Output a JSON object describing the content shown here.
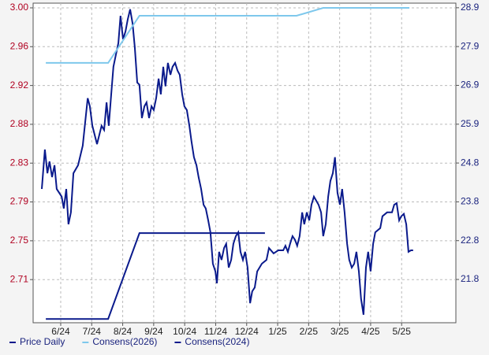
{
  "chart_data": {
    "type": "line",
    "xlim": [
      -0.89,
      12.75
    ],
    "xticks": [
      {
        "value": 0,
        "label": "6/24"
      },
      {
        "value": 1,
        "label": "7/24"
      },
      {
        "value": 2,
        "label": "8/24"
      },
      {
        "value": 3,
        "label": "9/24"
      },
      {
        "value": 4,
        "label": "10/24"
      },
      {
        "value": 5,
        "label": "11/24"
      },
      {
        "value": 6,
        "label": "12/24"
      },
      {
        "value": 7,
        "label": "1/25"
      },
      {
        "value": 8,
        "label": "2/25"
      },
      {
        "value": 9,
        "label": "3/25"
      },
      {
        "value": 10,
        "label": "4/25"
      },
      {
        "value": 11,
        "label": "5/25"
      }
    ],
    "ylim": [
      2.665,
      3.005
    ],
    "yticks": [
      {
        "value": 3.0,
        "label": "3.00"
      },
      {
        "value": 2.9587,
        "label": "2.96"
      },
      {
        "value": 2.9174,
        "label": "2.92"
      },
      {
        "value": 2.8761,
        "label": "2.88"
      },
      {
        "value": 2.8348,
        "label": "2.83"
      },
      {
        "value": 2.7935,
        "label": "2.79"
      },
      {
        "value": 2.7522,
        "label": "2.75"
      },
      {
        "value": 2.7109,
        "label": "2.71"
      }
    ],
    "y2lim": [
      20.68,
      29.02
    ],
    "y2ticks": [
      28.9,
      {
        "value": 27.887,
        "label": "27.9"
      },
      {
        "value": 26.874,
        "label": "26.9"
      },
      {
        "value": 25.861,
        "label": "25.9"
      },
      {
        "value": 24.848,
        "label": "24.8"
      },
      {
        "value": 23.835,
        "label": "23.8"
      },
      {
        "value": 22.822,
        "label": "22.8"
      },
      {
        "value": 21.809,
        "label": "21.8"
      }
    ],
    "grid": true,
    "series": [
      {
        "name": "Price Daily",
        "color": "#0a1a8c",
        "axis": "y2",
        "x": [
          -0.61,
          -0.51,
          -0.43,
          -0.36,
          -0.28,
          -0.2,
          -0.13,
          0.03,
          0.1,
          0.18,
          0.25,
          0.33,
          0.41,
          0.56,
          0.71,
          0.87,
          0.94,
          1.02,
          1.17,
          1.32,
          1.4,
          1.48,
          1.55,
          1.63,
          1.7,
          1.78,
          1.86,
          1.93,
          2.01,
          2.09,
          2.16,
          2.24,
          2.32,
          2.39,
          2.47,
          2.54,
          2.62,
          2.7,
          2.77,
          2.85,
          2.93,
          3.0,
          3.08,
          3.16,
          3.23,
          3.31,
          3.38,
          3.46,
          3.54,
          3.61,
          3.69,
          3.77,
          3.84,
          3.92,
          3.99,
          4.07,
          4.15,
          4.22,
          4.3,
          4.38,
          4.45,
          4.53,
          4.61,
          4.68,
          4.76,
          4.83,
          4.91,
          4.99,
          5.04,
          5.11,
          5.19,
          5.27,
          5.34,
          5.42,
          5.5,
          5.57,
          5.65,
          5.73,
          5.8,
          5.88,
          5.95,
          6.03,
          6.11,
          6.18,
          6.26,
          6.34,
          6.49,
          6.64,
          6.72,
          6.87,
          7.02,
          7.18,
          7.25,
          7.33,
          7.4,
          7.48,
          7.56,
          7.63,
          7.71,
          7.79,
          7.86,
          7.94,
          8.02,
          8.09,
          8.17,
          8.32,
          8.4,
          8.47,
          8.55,
          8.63,
          8.7,
          8.78,
          8.85,
          8.93,
          9.01,
          9.08,
          9.16,
          9.24,
          9.31,
          9.39,
          9.47,
          9.54,
          9.62,
          9.69,
          9.77,
          9.85,
          9.92,
          10.0,
          10.08,
          10.15,
          10.31,
          10.38,
          10.53,
          10.69,
          10.76,
          10.84,
          10.92,
          10.99,
          11.07,
          11.15,
          11.22,
          11.3,
          11.37
        ],
        "values": [
          24.17,
          25.2,
          24.58,
          24.89,
          24.48,
          24.79,
          24.17,
          23.97,
          23.66,
          24.17,
          23.25,
          23.56,
          24.58,
          24.79,
          25.3,
          26.54,
          26.33,
          25.82,
          25.34,
          25.82,
          25.71,
          26.43,
          25.82,
          26.64,
          27.36,
          27.67,
          27.98,
          28.69,
          28.08,
          28.28,
          28.59,
          28.86,
          28.49,
          27.87,
          26.95,
          26.89,
          26.02,
          26.33,
          26.43,
          26.02,
          26.33,
          26.23,
          26.54,
          27.05,
          26.64,
          27.36,
          26.85,
          27.46,
          27.15,
          27.36,
          27.46,
          27.26,
          27.15,
          26.64,
          26.33,
          26.23,
          25.82,
          25.41,
          25.0,
          24.79,
          24.48,
          24.17,
          23.76,
          23.66,
          23.35,
          23.04,
          22.22,
          22.02,
          21.71,
          22.53,
          22.32,
          22.63,
          22.74,
          22.12,
          22.32,
          22.74,
          22.94,
          23.04,
          22.53,
          22.32,
          22.53,
          22.12,
          21.19,
          21.5,
          21.6,
          22.02,
          22.22,
          22.32,
          22.63,
          22.49,
          22.57,
          22.57,
          22.69,
          22.53,
          22.74,
          22.94,
          22.84,
          22.69,
          22.94,
          23.56,
          23.25,
          23.56,
          23.35,
          23.76,
          23.97,
          23.76,
          23.56,
          22.94,
          23.25,
          23.97,
          24.38,
          24.58,
          25.0,
          24.07,
          23.76,
          24.17,
          23.56,
          22.74,
          22.32,
          22.12,
          22.22,
          22.53,
          22.02,
          21.3,
          20.89,
          22.12,
          22.53,
          22.02,
          22.74,
          23.04,
          23.15,
          23.46,
          23.56,
          23.56,
          23.76,
          23.8,
          23.35,
          23.46,
          23.52,
          23.25,
          22.53,
          22.57,
          22.57
        ]
      },
      {
        "name": "Consens(2026)",
        "color": "#7ec8ec",
        "x": [
          -0.48,
          1.53,
          2.54,
          7.61,
          8.47,
          11.25
        ],
        "values": [
          2.9414,
          2.9414,
          2.9916,
          2.9916,
          3.0,
          3.0
        ]
      },
      {
        "name": "Consens(2024)",
        "color": "#0a1a8c",
        "x": [
          -0.48,
          1.53,
          2.54,
          6.59
        ],
        "values": [
          2.669,
          2.669,
          2.7604,
          2.7604
        ]
      }
    ]
  }
}
